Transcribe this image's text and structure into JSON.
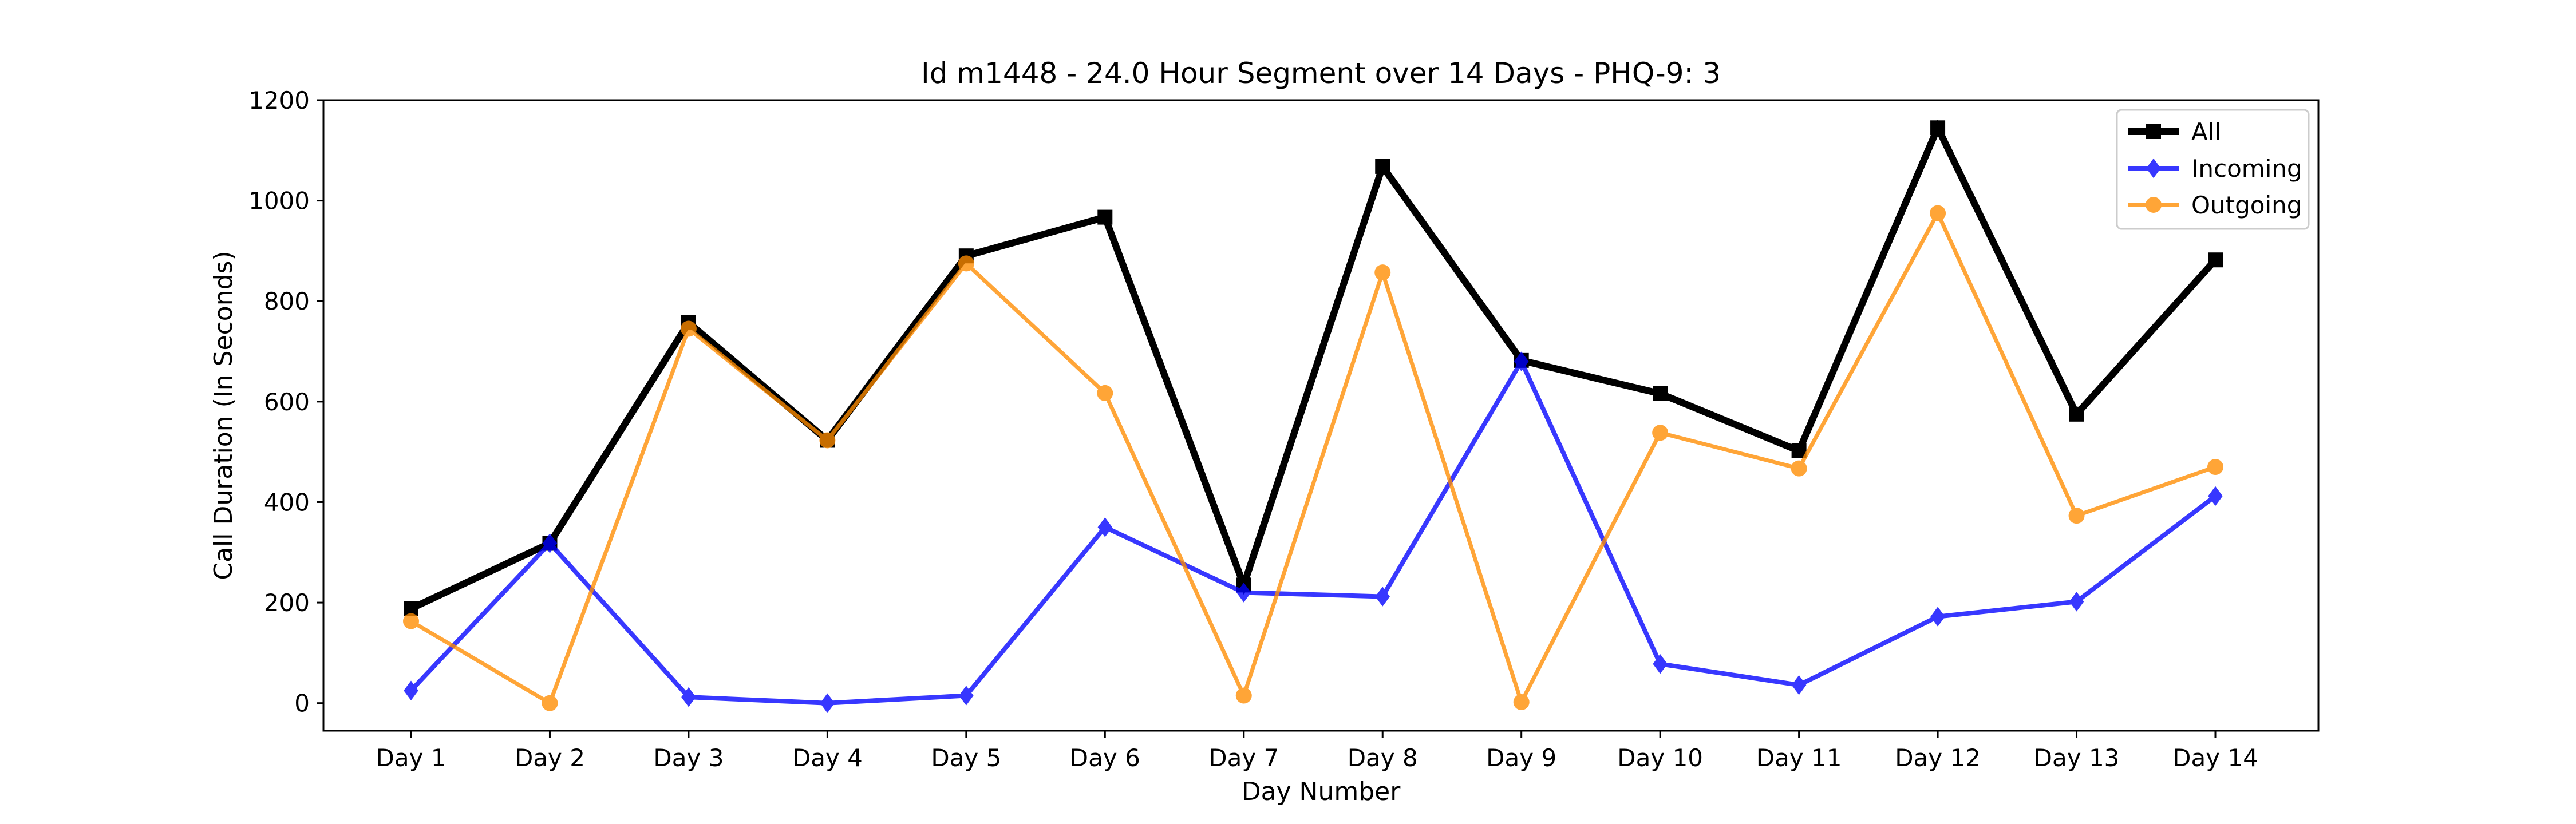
{
  "chart_data": {
    "type": "line",
    "title": "Id m1448 - 24.0 Hour Segment over 14 Days - PHQ-9: 3",
    "xlabel": "Day Number",
    "ylabel": "Call Duration (In Seconds)",
    "categories": [
      "Day 1",
      "Day 2",
      "Day 3",
      "Day 4",
      "Day 5",
      "Day 6",
      "Day 7",
      "Day 8",
      "Day 9",
      "Day 10",
      "Day 11",
      "Day 12",
      "Day 13",
      "Day 14"
    ],
    "ylim": [
      -55,
      1200
    ],
    "yticks": [
      0,
      200,
      400,
      600,
      800,
      1000,
      1200
    ],
    "grid": false,
    "legend_position": "top-right",
    "series": [
      {
        "name": "All",
        "color": "#000000",
        "marker": "square",
        "values": [
          188,
          318,
          757,
          523,
          890,
          967,
          235,
          1068,
          682,
          616,
          502,
          1145,
          575,
          882
        ]
      },
      {
        "name": "Incoming",
        "color": "#0000ff",
        "marker": "diamond",
        "values": [
          25,
          318,
          12,
          0,
          15,
          350,
          220,
          212,
          680,
          78,
          36,
          172,
          202,
          412
        ]
      },
      {
        "name": "Outgoing",
        "color": "#ff8c00",
        "marker": "circle",
        "values": [
          163,
          0,
          745,
          523,
          875,
          617,
          15,
          857,
          2,
          538,
          467,
          975,
          373,
          470
        ]
      }
    ]
  }
}
